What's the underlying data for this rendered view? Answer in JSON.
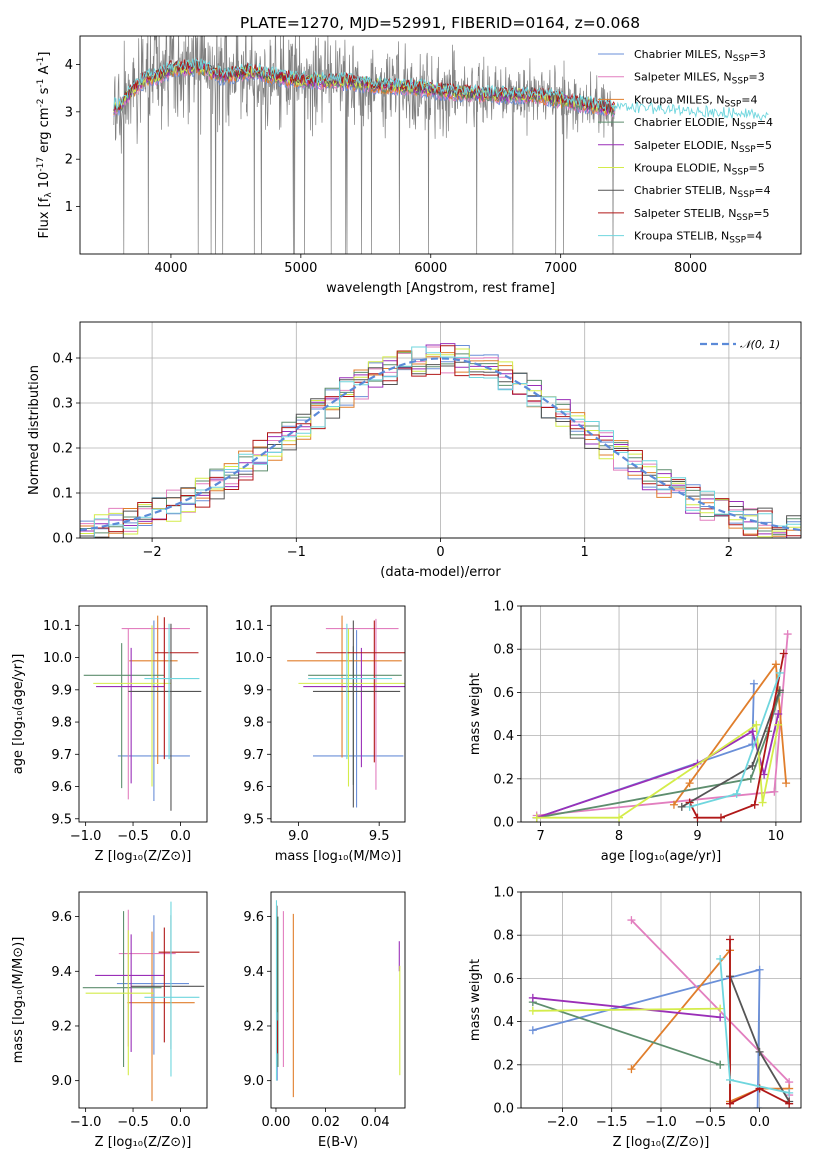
{
  "figure": {
    "title": "PLATE=1270, MJD=52991, FIBERID=0164, z=0.068"
  },
  "models": [
    {
      "label": "Chabrier MILES, N_{SSP}=3",
      "color": "#6a8fd8"
    },
    {
      "label": "Salpeter MILES, N_{SSP}=3",
      "color": "#e27fbf"
    },
    {
      "label": "Kroupa MILES, N_{SSP}=4",
      "color": "#e07e2c"
    },
    {
      "label": "Chabrier ELODIE, N_{SSP}=4",
      "color": "#5e8e6e"
    },
    {
      "label": "Salpeter ELODIE, N_{SSP}=5",
      "color": "#9a2fb8"
    },
    {
      "label": "Kroupa ELODIE, N_{SSP}=5",
      "color": "#d4ec4a"
    },
    {
      "label": "Chabrier STELIB, N_{SSP}=4",
      "color": "#555555"
    },
    {
      "label": "Salpeter STELIB, N_{SSP}=5",
      "color": "#b01818"
    },
    {
      "label": "Kroupa STELIB, N_{SSP}=4",
      "color": "#6fd6de"
    }
  ],
  "chart_data": [
    {
      "id": "spectrum",
      "type": "line",
      "title": "PLATE=1270, MJD=52991, FIBERID=0164, z=0.068",
      "xlabel": "wavelength [Angstrom, rest frame]",
      "ylabel": "Flux [f_λ 10^{-17} erg cm^{-2} s^{-1} A^{-1}]",
      "xlim": [
        3300,
        8850
      ],
      "ylim": [
        0,
        4.6
      ],
      "xticks": [
        4000,
        5000,
        6000,
        7000,
        8000
      ],
      "yticks": [
        1,
        2,
        3,
        4
      ],
      "data_color": "#808080",
      "continuum": {
        "x": [
          3600,
          3700,
          3800,
          3900,
          4000,
          4200,
          4400,
          4600,
          4800,
          5000,
          5300,
          5600,
          5900,
          6200,
          6500,
          6800,
          7100,
          7400,
          7700,
          8000,
          8300,
          8600
        ],
        "y": [
          3.1,
          3.45,
          3.7,
          3.75,
          3.9,
          3.95,
          3.75,
          3.85,
          3.75,
          3.65,
          3.65,
          3.55,
          3.5,
          3.4,
          3.35,
          3.35,
          3.2,
          3.05,
          3.0,
          2.95,
          2.9,
          2.85
        ]
      }
    },
    {
      "id": "residuals",
      "type": "line",
      "xlabel": "(data-model)/error",
      "ylabel": "Normed distribution",
      "xlim": [
        -2.5,
        2.5
      ],
      "ylim": [
        0,
        0.48
      ],
      "xticks": [
        -2,
        -1,
        0,
        1,
        2
      ],
      "yticks": [
        0.0,
        0.1,
        0.2,
        0.3,
        0.4
      ],
      "legend": "𝒩(0, 1)",
      "legend_color": "#5b8ad8"
    },
    {
      "id": "age_vs_Z",
      "type": "scatter",
      "xlabel": "Z [log₁₀(Z/Z⊙)]",
      "ylabel": "age  [log₁₀(age/yr)]",
      "xlim": [
        -1.07,
        0.28
      ],
      "ylim": [
        9.49,
        10.16
      ],
      "xticks": [
        -1.0,
        -0.5,
        0.0
      ],
      "yticks": [
        9.5,
        9.6,
        9.7,
        9.8,
        9.9,
        10.0,
        10.1
      ],
      "points": [
        {
          "x": -0.28,
          "y": 9.695,
          "xerr": [
            0.38,
            0.38
          ],
          "yerr": [
            0.14,
            0.42
          ]
        },
        {
          "x": -0.55,
          "y": 10.09,
          "xerr": [
            0.07,
            0.65
          ],
          "yerr": [
            0.53,
            0.0
          ]
        },
        {
          "x": -0.24,
          "y": 9.99,
          "xerr": [
            0.3,
            0.21
          ],
          "yerr": [
            0.32,
            0.14
          ]
        },
        {
          "x": -0.62,
          "y": 9.945,
          "xerr": [
            0.4,
            0.45
          ],
          "yerr": [
            0.35,
            0.1
          ]
        },
        {
          "x": -0.52,
          "y": 9.91,
          "xerr": [
            0.37,
            0.35
          ],
          "yerr": [
            0.3,
            0.12
          ]
        },
        {
          "x": -0.3,
          "y": 9.92,
          "xerr": [
            0.62,
            0.2
          ],
          "yerr": [
            0.32,
            0.18
          ]
        },
        {
          "x": -0.1,
          "y": 9.895,
          "xerr": [
            0.45,
            0.32
          ],
          "yerr": [
            0.37,
            0.21
          ]
        },
        {
          "x": -0.17,
          "y": 10.015,
          "xerr": [
            0.1,
            0.36
          ],
          "yerr": [
            0.33,
            0.11
          ]
        },
        {
          "x": -0.12,
          "y": 9.935,
          "xerr": [
            0.26,
            0.32
          ],
          "yerr": [
            0.25,
            0.17
          ]
        }
      ]
    },
    {
      "id": "age_vs_mass",
      "type": "scatter",
      "xlabel": "mass [log₁₀(M/M⊙)]",
      "xlim": [
        8.83,
        9.66
      ],
      "ylim": [
        9.49,
        10.16
      ],
      "xticks": [
        9.0,
        9.5
      ],
      "yticks": [
        9.5,
        9.6,
        9.7,
        9.8,
        9.9,
        10.0,
        10.1
      ],
      "points": [
        {
          "x": 9.36,
          "y": 9.695,
          "xerr": [
            0.27,
            0.29
          ],
          "yerr": [
            0.16,
            0.39
          ]
        },
        {
          "x": 9.48,
          "y": 10.09,
          "xerr": [
            0.31,
            0.14
          ],
          "yerr": [
            0.5,
            0.03
          ]
        },
        {
          "x": 9.27,
          "y": 9.99,
          "xerr": [
            0.34,
            0.37
          ],
          "yerr": [
            0.3,
            0.14
          ]
        },
        {
          "x": 9.34,
          "y": 9.945,
          "xerr": [
            0.28,
            0.3
          ],
          "yerr": [
            0.34,
            0.09
          ]
        },
        {
          "x": 9.39,
          "y": 9.91,
          "xerr": [
            0.36,
            0.35
          ],
          "yerr": [
            0.25,
            0.12
          ]
        },
        {
          "x": 9.31,
          "y": 9.92,
          "xerr": [
            0.31,
            0.4
          ],
          "yerr": [
            0.32,
            0.17
          ]
        },
        {
          "x": 9.34,
          "y": 9.895,
          "xerr": [
            0.25,
            0.29
          ],
          "yerr": [
            0.36,
            0.22
          ]
        },
        {
          "x": 9.47,
          "y": 10.015,
          "xerr": [
            0.36,
            0.35
          ],
          "yerr": [
            0.34,
            0.1
          ]
        },
        {
          "x": 9.3,
          "y": 9.935,
          "xerr": [
            0.24,
            0.28
          ],
          "yerr": [
            0.25,
            0.17
          ]
        }
      ]
    },
    {
      "id": "weight_vs_age",
      "type": "line",
      "xlabel": "age  [log₁₀(age/yr)]",
      "ylabel": "mass weight",
      "xlim": [
        6.75,
        10.32
      ],
      "ylim": [
        0,
        1
      ],
      "xticks": [
        7,
        8,
        9,
        10
      ],
      "yticks": [
        0.0,
        0.2,
        0.4,
        0.6,
        0.8,
        1.0
      ],
      "series": [
        {
          "x": [
            6.95,
            9.7,
            9.72
          ],
          "y": [
            0.02,
            0.36,
            0.64
          ]
        },
        {
          "x": [
            6.95,
            9.98,
            10.15
          ],
          "y": [
            0.03,
            0.14,
            0.87
          ]
        },
        {
          "x": [
            8.7,
            8.9,
            10.0,
            10.13
          ],
          "y": [
            0.08,
            0.18,
            0.73,
            0.18
          ]
        },
        {
          "x": [
            6.95,
            9.68,
            9.9,
            10.05
          ],
          "y": [
            0.02,
            0.2,
            0.42,
            0.6
          ]
        },
        {
          "x": [
            6.95,
            9.0,
            9.7,
            9.85,
            10.03
          ],
          "y": [
            0.02,
            0.27,
            0.42,
            0.22,
            0.5
          ]
        },
        {
          "x": [
            6.95,
            8.0,
            9.75,
            9.83,
            10.03
          ],
          "y": [
            0.02,
            0.02,
            0.45,
            0.09,
            0.45
          ]
        },
        {
          "x": [
            8.8,
            9.7,
            10.05
          ],
          "y": [
            0.07,
            0.26,
            0.61
          ]
        },
        {
          "x": [
            8.9,
            9.0,
            9.3,
            9.73,
            10.1
          ],
          "y": [
            0.09,
            0.02,
            0.02,
            0.08,
            0.78
          ]
        },
        {
          "x": [
            8.9,
            9.5,
            10.05
          ],
          "y": [
            0.07,
            0.13,
            0.69
          ]
        }
      ]
    },
    {
      "id": "mass_vs_Z",
      "type": "scatter",
      "xlabel": "Z [log₁₀(Z/Z⊙)]",
      "ylabel": "mass [log₁₀(M/M⊙)]",
      "xlim": [
        -1.07,
        0.28
      ],
      "ylim": [
        8.9,
        9.69
      ],
      "xticks": [
        -1.0,
        -0.5,
        0.0
      ],
      "yticks": [
        9.0,
        9.2,
        9.4,
        9.6
      ],
      "points": [
        {
          "x": -0.28,
          "y": 9.355,
          "xerr": [
            0.39,
            0.37
          ],
          "yerr": [
            0.26,
            0.25
          ]
        },
        {
          "x": -0.55,
          "y": 9.465,
          "xerr": [
            0.1,
            0.5
          ],
          "yerr": [
            0.34,
            0.16
          ]
        },
        {
          "x": -0.3,
          "y": 9.285,
          "xerr": [
            0.26,
            0.45
          ],
          "yerr": [
            0.36,
            0.26
          ]
        },
        {
          "x": -0.6,
          "y": 9.34,
          "xerr": [
            0.43,
            0.4
          ],
          "yerr": [
            0.29,
            0.28
          ]
        },
        {
          "x": -0.52,
          "y": 9.385,
          "xerr": [
            0.38,
            0.35
          ],
          "yerr": [
            0.28,
            0.15
          ]
        },
        {
          "x": -0.55,
          "y": 9.32,
          "xerr": [
            0.45,
            0.27
          ],
          "yerr": [
            0.3,
            0.23
          ]
        },
        {
          "x": -0.1,
          "y": 9.345,
          "xerr": [
            0.42,
            0.35
          ],
          "yerr": [
            0.23,
            0.26
          ]
        },
        {
          "x": -0.17,
          "y": 9.47,
          "xerr": [
            0.06,
            0.37
          ],
          "yerr": [
            0.33,
            0.09
          ]
        },
        {
          "x": -0.1,
          "y": 9.305,
          "xerr": [
            0.28,
            0.3
          ],
          "yerr": [
            0.29,
            0.35
          ]
        }
      ]
    },
    {
      "id": "mass_vs_EBV",
      "type": "scatter",
      "xlabel": "E(B-V)",
      "xlim": [
        -0.002,
        0.052
      ],
      "ylim": [
        8.9,
        9.69
      ],
      "xticks": [
        0.0,
        0.02,
        0.04
      ],
      "yticks": [
        9.0,
        9.2,
        9.4,
        9.6
      ],
      "points": [
        {
          "x": 0.0005,
          "y": 9.4,
          "yerr": [
            0.4,
            0.2
          ]
        },
        {
          "x": 0.003,
          "y": 9.4,
          "yerr": [
            0.35,
            0.22
          ]
        },
        {
          "x": 0.007,
          "y": 9.28,
          "yerr": [
            0.34,
            0.33
          ]
        },
        {
          "x": 0.0008,
          "y": 9.35,
          "yerr": [
            0.3,
            0.25
          ]
        },
        {
          "x": 0.0497,
          "y": 9.45,
          "yerr": [
            0.05,
            0.06
          ]
        },
        {
          "x": 0.0499,
          "y": 9.22,
          "yerr": [
            0.2,
            0.2
          ]
        },
        {
          "x": 0.0004,
          "y": 9.45,
          "yerr": [
            0.2,
            0.19
          ]
        },
        {
          "x": 0.0006,
          "y": 9.16,
          "yerr": [
            0.06,
            0.06
          ]
        },
        {
          "x": 0.0002,
          "y": 9.3,
          "yerr": [
            0.3,
            0.36
          ]
        }
      ]
    },
    {
      "id": "weight_vs_Z",
      "type": "line",
      "xlabel": "Z [log₁₀(Z/Z⊙)]",
      "ylabel": "mass weight",
      "xlim": [
        -2.42,
        0.42
      ],
      "ylim": [
        0,
        1
      ],
      "xticks": [
        -2.0,
        -1.5,
        -1.0,
        -0.5,
        0.0
      ],
      "yticks": [
        0.0,
        0.2,
        0.4,
        0.6,
        0.8,
        1.0
      ],
      "series": [
        {
          "x": [
            -2.3,
            0.0,
            -0.02
          ],
          "y": [
            0.36,
            0.64,
            0.0
          ]
        },
        {
          "x": [
            -1.3,
            0.3,
            0.3
          ],
          "y": [
            0.87,
            0.12,
            0.06
          ]
        },
        {
          "x": [
            -1.3,
            -0.3,
            -0.3,
            -0.3,
            0.0,
            0.3
          ],
          "y": [
            0.18,
            0.73,
            0.03,
            0.03,
            0.09,
            0.09
          ]
        },
        {
          "x": [
            -2.3,
            -0.4,
            -0.4
          ],
          "y": [
            0.49,
            0.2,
            0.2
          ]
        },
        {
          "x": [
            -2.3,
            -0.4
          ],
          "y": [
            0.51,
            0.42
          ]
        },
        {
          "x": [
            -2.3,
            -0.4
          ],
          "y": [
            0.45,
            0.46
          ]
        },
        {
          "x": [
            -0.3,
            0.0,
            0.3
          ],
          "y": [
            0.61,
            0.26,
            0.03
          ]
        },
        {
          "x": [
            -0.3,
            -0.3,
            0.0,
            0.3
          ],
          "y": [
            0.78,
            0.02,
            0.09,
            0.02
          ]
        },
        {
          "x": [
            -0.4,
            -0.3,
            0.3
          ],
          "y": [
            0.69,
            0.13,
            0.07
          ]
        }
      ]
    }
  ]
}
